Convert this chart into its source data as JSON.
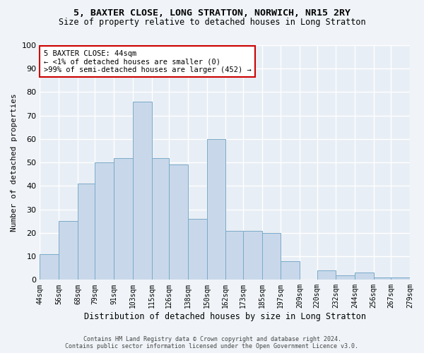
{
  "title1": "5, BAXTER CLOSE, LONG STRATTON, NORWICH, NR15 2RY",
  "title2": "Size of property relative to detached houses in Long Stratton",
  "xlabel": "Distribution of detached houses by size in Long Stratton",
  "ylabel": "Number of detached properties",
  "bin_edges": [
    44,
    56,
    68,
    79,
    91,
    103,
    115,
    126,
    138,
    150,
    162,
    173,
    185,
    197,
    209,
    220,
    232,
    244,
    256,
    267,
    279
  ],
  "bar_values": [
    11,
    25,
    41,
    50,
    52,
    76,
    52,
    49,
    26,
    60,
    21,
    21,
    20,
    8,
    0,
    4,
    2,
    3,
    1,
    1
  ],
  "tick_labels": [
    "44sqm",
    "56sqm",
    "68sqm",
    "79sqm",
    "91sqm",
    "103sqm",
    "115sqm",
    "126sqm",
    "138sqm",
    "150sqm",
    "162sqm",
    "173sqm",
    "185sqm",
    "197sqm",
    "209sqm",
    "220sqm",
    "232sqm",
    "244sqm",
    "256sqm",
    "267sqm",
    "279sqm"
  ],
  "bar_color": "#c8d8ea",
  "bar_edge_color": "#7aaac8",
  "annotation_text": "5 BAXTER CLOSE: 44sqm\n← <1% of detached houses are smaller (0)\n>99% of semi-detached houses are larger (452) →",
  "annotation_box_color": "#ffffff",
  "annotation_border_color": "#cc0000",
  "footer_line1": "Contains HM Land Registry data © Crown copyright and database right 2024.",
  "footer_line2": "Contains public sector information licensed under the Open Government Licence v3.0.",
  "bg_color": "#f0f4f8",
  "plot_bg_color": "#e8eef5",
  "grid_color": "#ffffff",
  "ylim": [
    0,
    100
  ],
  "yticks": [
    0,
    10,
    20,
    30,
    40,
    50,
    60,
    70,
    80,
    90,
    100
  ],
  "title1_fontsize": 9.5,
  "title2_fontsize": 8.5,
  "xlabel_fontsize": 8.5,
  "ylabel_fontsize": 8,
  "tick_fontsize": 7,
  "annot_fontsize": 7.5,
  "footer_fontsize": 6
}
